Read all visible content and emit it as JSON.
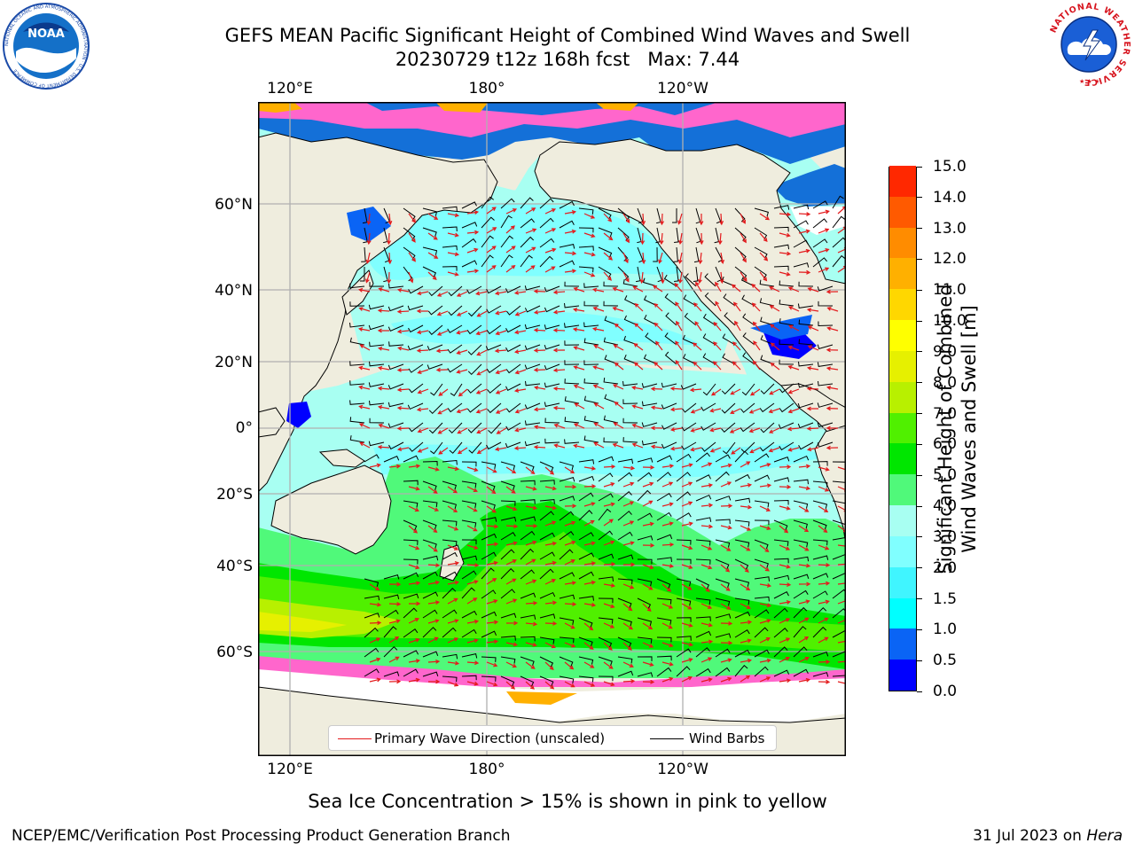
{
  "header": {
    "title_line1": "GEFS MEAN Pacific Significant Height of Combined Wind Waves and Swell",
    "title_line2": "20230729 t12z 168h fcst   Max: 7.44"
  },
  "logos": {
    "noaa_text": "NOAA",
    "noaa_ring_text": "NATIONAL OCEANIC AND ATMOSPHERIC ADMINISTRATION · U.S. DEPARTMENT OF COMMERCE",
    "nws_ring_text": "NATIONAL WEATHER SERVICE"
  },
  "map": {
    "lon_ticks": [
      "120°E",
      "180°",
      "120°W"
    ],
    "lat_ticks": [
      "60°N",
      "40°N",
      "20°N",
      "0°",
      "20°S",
      "40°S",
      "60°S"
    ],
    "legend": {
      "wave_direction": "Primary Wave Direction (unscaled)",
      "wind_barbs": "Wind Barbs",
      "wave_color": "#e31a1c",
      "barb_color": "#000000"
    }
  },
  "colorbar": {
    "title_line1": "Significant Height of Combined",
    "title_line2": "Wind Waves and Swell [m]",
    "levels": [
      "0.0",
      "0.5",
      "1.0",
      "1.5",
      "2.0",
      "3.0",
      "4.0",
      "5.0",
      "6.0",
      "7.0",
      "8.0",
      "9.0",
      "10.0",
      "11.0",
      "12.0",
      "13.0",
      "14.0",
      "15.0"
    ],
    "colors": [
      "#0000ff",
      "#0a64f5",
      "#00ffff",
      "#40f5ff",
      "#80ffff",
      "#a8fff2",
      "#50f97a",
      "#00e600",
      "#50f000",
      "#b8f000",
      "#e6f000",
      "#ffff00",
      "#ffd700",
      "#ffb000",
      "#ff8c00",
      "#ff5a00",
      "#ff2800"
    ]
  },
  "notes": {
    "sea_ice": "Sea Ice Concentration > 15% is shown in pink to yellow"
  },
  "footer": {
    "left": "NCEP/EMC/Verification Post Processing Product Generation Branch",
    "right_date": "31 Jul 2023 on",
    "right_host": "Hera"
  }
}
